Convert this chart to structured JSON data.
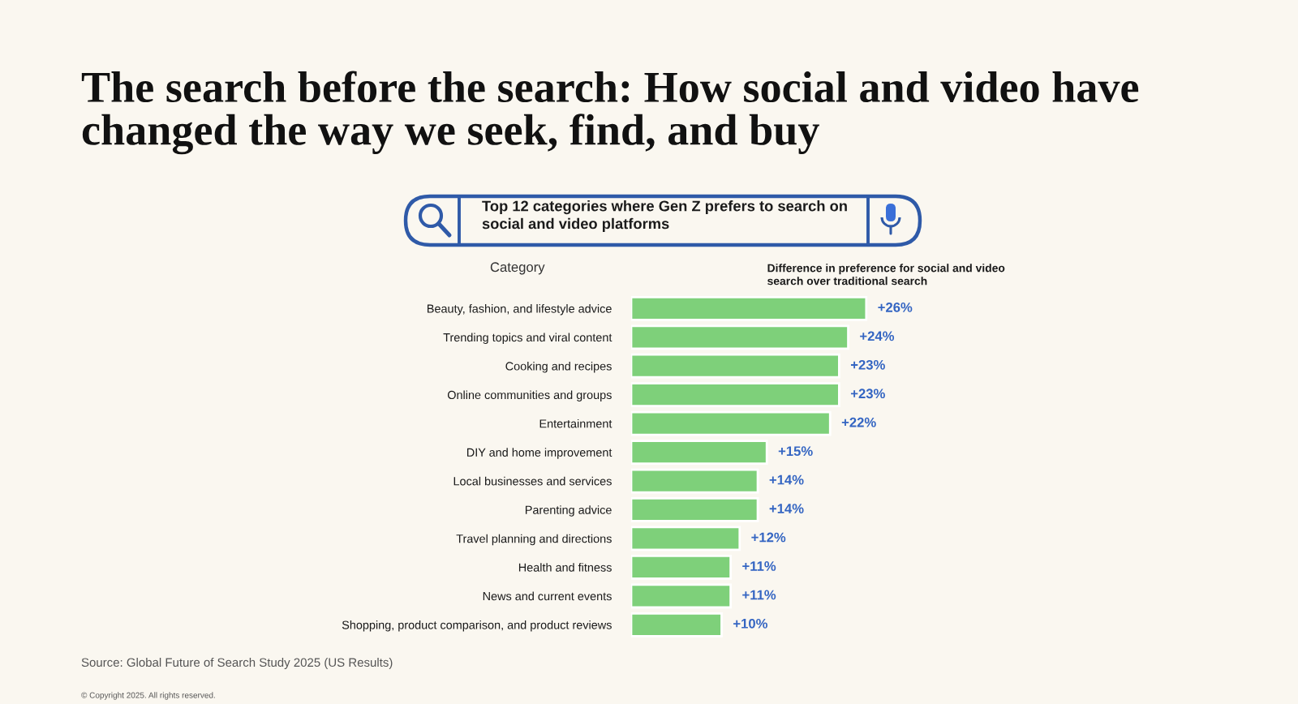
{
  "chart_data": {
    "type": "bar",
    "orientation": "horizontal",
    "title": "The search before the search: How social and video have changed the way we seek, find, and buy",
    "subtitle": "Top 12 categories where Gen Z prefers to search on social and video platforms",
    "ylabel": "Category",
    "xlabel": "Difference in preference for social and video search over traditional search",
    "categories": [
      "Beauty, fashion, and lifestyle advice",
      "Trending topics and viral content",
      "Cooking and recipes",
      "Online communities and groups",
      "Entertainment",
      "DIY and home improvement",
      "Local businesses and services",
      "Parenting advice",
      "Travel planning and directions",
      "Health and fitness",
      "News and current events",
      "Shopping, product comparison, and product reviews"
    ],
    "values": [
      26,
      24,
      23,
      23,
      22,
      15,
      14,
      14,
      12,
      11,
      11,
      10
    ],
    "color": "#7ed07a",
    "value_labels": [
      "+26%",
      "+24%",
      "+23%",
      "+23%",
      "+22%",
      "+15%",
      "+14%",
      "+14%",
      "+12%",
      "+11%",
      "+11%",
      "+10%"
    ],
    "tick_labels": "y",
    "annotations": [
      "Source: Global Future of Search Study 2025 (US Results)",
      "© Copyright 2025. All rights reserved."
    ]
  }
}
